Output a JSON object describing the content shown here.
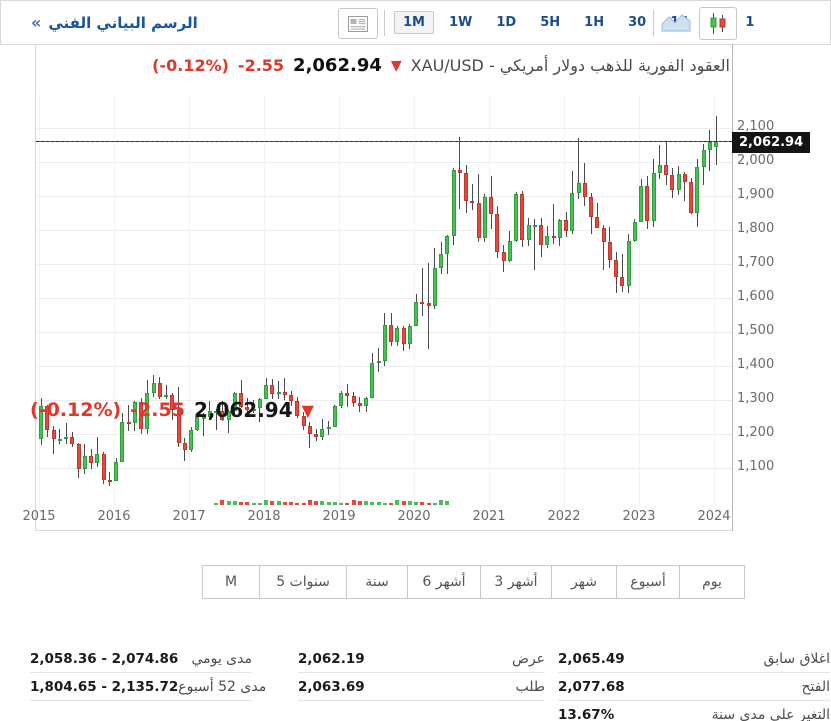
{
  "toolbar": {
    "panel_chevron": "«",
    "panel_title": "الرسم البياني الفني",
    "timeframes": [
      "1M",
      "1W",
      "1D",
      "5H",
      "1H",
      "30",
      "15",
      "5",
      "1"
    ],
    "selected_timeframe": "1M",
    "icons": [
      "news-icon",
      "area-chart-icon",
      "candlestick-chart-icon"
    ]
  },
  "header": {
    "instrument": "XAU/USD - العقود الفورية للذهب دولار أمريكي",
    "price": "2,062.94",
    "change": "-2.55",
    "change_pct": "(-0.12%)",
    "arrow": "▼"
  },
  "chart_label": {
    "price": "2,062.94",
    "change": "-2.55",
    "change_pct": "(-0.12%)",
    "arrow": "▼"
  },
  "price_line": {
    "value": "2,062.94"
  },
  "chart_data": {
    "type": "candlestick",
    "symbol": "XAU/USD",
    "interval": "1M",
    "title": "XAU/USD - العقود الفورية للذهب دولار أمريكي",
    "current_price": 2062.94,
    "grid": true,
    "x_tick_labels": [
      "2015",
      "2016",
      "2017",
      "2018",
      "2019",
      "2020",
      "2021",
      "2022",
      "2023",
      "2024"
    ],
    "y_tick_labels": [
      "2,100",
      "2,000",
      "1,900",
      "1,800",
      "1,700",
      "1,600",
      "1,500",
      "1,400",
      "1,300",
      "1,200",
      "1,100"
    ],
    "y_tick_values": [
      2100,
      2000,
      1900,
      1800,
      1700,
      1600,
      1500,
      1400,
      1300,
      1200,
      1100
    ],
    "ylim": [
      1000,
      2195
    ],
    "start_month": "2015-01",
    "ohlc": [
      [
        1184,
        1307,
        1168,
        1283
      ],
      [
        1283,
        1285,
        1190,
        1213
      ],
      [
        1213,
        1223,
        1142,
        1184
      ],
      [
        1184,
        1215,
        1170,
        1184
      ],
      [
        1184,
        1232,
        1170,
        1190
      ],
      [
        1190,
        1206,
        1162,
        1171
      ],
      [
        1171,
        1175,
        1072,
        1096
      ],
      [
        1096,
        1170,
        1081,
        1135
      ],
      [
        1135,
        1156,
        1098,
        1115
      ],
      [
        1115,
        1192,
        1104,
        1142
      ],
      [
        1142,
        1146,
        1052,
        1065
      ],
      [
        1065,
        1088,
        1046,
        1061
      ],
      [
        1061,
        1128,
        1061,
        1118
      ],
      [
        1118,
        1263,
        1117,
        1234
      ],
      [
        1234,
        1285,
        1208,
        1232
      ],
      [
        1232,
        1296,
        1209,
        1293
      ],
      [
        1293,
        1306,
        1199,
        1215
      ],
      [
        1215,
        1358,
        1200,
        1322
      ],
      [
        1322,
        1375,
        1310,
        1351
      ],
      [
        1351,
        1367,
        1302,
        1309
      ],
      [
        1309,
        1344,
        1302,
        1316
      ],
      [
        1316,
        1320,
        1241,
        1272
      ],
      [
        1272,
        1338,
        1163,
        1173
      ],
      [
        1173,
        1188,
        1122,
        1152
      ],
      [
        1152,
        1220,
        1146,
        1211
      ],
      [
        1211,
        1264,
        1210,
        1249
      ],
      [
        1249,
        1261,
        1194,
        1249
      ],
      [
        1249,
        1296,
        1244,
        1268
      ],
      [
        1268,
        1273,
        1213,
        1269
      ],
      [
        1269,
        1298,
        1238,
        1242
      ],
      [
        1242,
        1271,
        1204,
        1269
      ],
      [
        1269,
        1325,
        1251,
        1321
      ],
      [
        1321,
        1358,
        1277,
        1280
      ],
      [
        1280,
        1307,
        1260,
        1271
      ],
      [
        1271,
        1299,
        1263,
        1275
      ],
      [
        1275,
        1307,
        1236,
        1303
      ],
      [
        1303,
        1366,
        1302,
        1345
      ],
      [
        1345,
        1361,
        1302,
        1318
      ],
      [
        1318,
        1357,
        1302,
        1325
      ],
      [
        1325,
        1365,
        1301,
        1315
      ],
      [
        1315,
        1326,
        1282,
        1298
      ],
      [
        1298,
        1309,
        1247,
        1253
      ],
      [
        1253,
        1266,
        1211,
        1224
      ],
      [
        1224,
        1235,
        1160,
        1201
      ],
      [
        1201,
        1214,
        1180,
        1192
      ],
      [
        1192,
        1243,
        1182,
        1215
      ],
      [
        1215,
        1237,
        1196,
        1222
      ],
      [
        1222,
        1284,
        1221,
        1282
      ],
      [
        1282,
        1326,
        1276,
        1321
      ],
      [
        1321,
        1347,
        1280,
        1313
      ],
      [
        1313,
        1324,
        1280,
        1292
      ],
      [
        1292,
        1310,
        1266,
        1283
      ],
      [
        1283,
        1308,
        1266,
        1305
      ],
      [
        1305,
        1439,
        1305,
        1409
      ],
      [
        1409,
        1452,
        1381,
        1414
      ],
      [
        1414,
        1555,
        1400,
        1520
      ],
      [
        1520,
        1557,
        1458,
        1472
      ],
      [
        1472,
        1518,
        1459,
        1513
      ],
      [
        1513,
        1517,
        1445,
        1464
      ],
      [
        1464,
        1525,
        1450,
        1517
      ],
      [
        1517,
        1611,
        1517,
        1589
      ],
      [
        1589,
        1689,
        1548,
        1586
      ],
      [
        1586,
        1704,
        1451,
        1577
      ],
      [
        1577,
        1747,
        1568,
        1687
      ],
      [
        1687,
        1765,
        1670,
        1730
      ],
      [
        1730,
        1786,
        1670,
        1781
      ],
      [
        1781,
        1983,
        1757,
        1976
      ],
      [
        1976,
        2075,
        1863,
        1968
      ],
      [
        1968,
        1992,
        1849,
        1886
      ],
      [
        1886,
        1934,
        1860,
        1879
      ],
      [
        1879,
        1966,
        1765,
        1777
      ],
      [
        1777,
        1906,
        1764,
        1898
      ],
      [
        1898,
        1959,
        1804,
        1848
      ],
      [
        1848,
        1871,
        1717,
        1734
      ],
      [
        1734,
        1755,
        1677,
        1708
      ],
      [
        1708,
        1798,
        1706,
        1769
      ],
      [
        1769,
        1913,
        1765,
        1907
      ],
      [
        1907,
        1916,
        1750,
        1770
      ],
      [
        1770,
        1834,
        1752,
        1814
      ],
      [
        1814,
        1832,
        1682,
        1814
      ],
      [
        1814,
        1834,
        1721,
        1757
      ],
      [
        1757,
        1813,
        1746,
        1783
      ],
      [
        1783,
        1877,
        1759,
        1775
      ],
      [
        1775,
        1831,
        1753,
        1829
      ],
      [
        1829,
        1853,
        1780,
        1797
      ],
      [
        1797,
        1974,
        1788,
        1909
      ],
      [
        1909,
        2070,
        1890,
        1937
      ],
      [
        1937,
        1998,
        1872,
        1897
      ],
      [
        1897,
        1910,
        1787,
        1837
      ],
      [
        1837,
        1879,
        1805,
        1807
      ],
      [
        1807,
        1814,
        1681,
        1766
      ],
      [
        1766,
        1808,
        1688,
        1711
      ],
      [
        1711,
        1735,
        1615,
        1661
      ],
      [
        1661,
        1729,
        1617,
        1634
      ],
      [
        1634,
        1787,
        1616,
        1769
      ],
      [
        1769,
        1833,
        1765,
        1824
      ],
      [
        1824,
        1949,
        1823,
        1928
      ],
      [
        1928,
        1960,
        1804,
        1827
      ],
      [
        1827,
        2010,
        1809,
        1969
      ],
      [
        1969,
        2049,
        1949,
        1990
      ],
      [
        1990,
        2063,
        1932,
        1963
      ],
      [
        1963,
        1983,
        1893,
        1919
      ],
      [
        1919,
        1988,
        1902,
        1965
      ],
      [
        1965,
        1972,
        1885,
        1940
      ],
      [
        1940,
        1953,
        1848,
        1849
      ],
      [
        1849,
        2009,
        1810,
        1984
      ],
      [
        1984,
        2052,
        1931,
        2036
      ],
      [
        2036,
        2095,
        1973,
        2058
      ],
      [
        2043,
        2135,
        1990,
        2063
      ]
    ],
    "volume_strip": {
      "from_index": 28,
      "to_index": 65
    }
  },
  "tabs": [
    "يوم",
    "أسبوع",
    "شهر",
    "3 أشهر",
    "6 أشهر",
    "سنة",
    "5 سنوات",
    "M"
  ],
  "stats": {
    "right": [
      {
        "label": "اغلاق سابق",
        "value": "2,065.49"
      },
      {
        "label": "الفتح",
        "value": "2,077.68"
      },
      {
        "label": "التغير على مدى سنة",
        "value": "13.67%"
      }
    ],
    "middle": [
      {
        "label": "عرض",
        "value": "2,062.19"
      },
      {
        "label": "طلب",
        "value": "2,063.69"
      }
    ],
    "left": [
      {
        "label": "مدى يومي",
        "value": "2,058.36 - 2,074.86"
      },
      {
        "label": "مدى 52 أسبوع",
        "value": "1,804.65 - 2,135.72"
      }
    ]
  },
  "colors": {
    "accent_blue": "#1a55a0",
    "nav_navy": "#1c4d8f",
    "up_fill": "#4dbd5a",
    "up_border": "#2f9e3c",
    "down_fill": "#e4483e",
    "down_border": "#c2362c",
    "wick": "#4a4a4a",
    "change_red": "#e0362b",
    "badge_bg": "#141414"
  }
}
